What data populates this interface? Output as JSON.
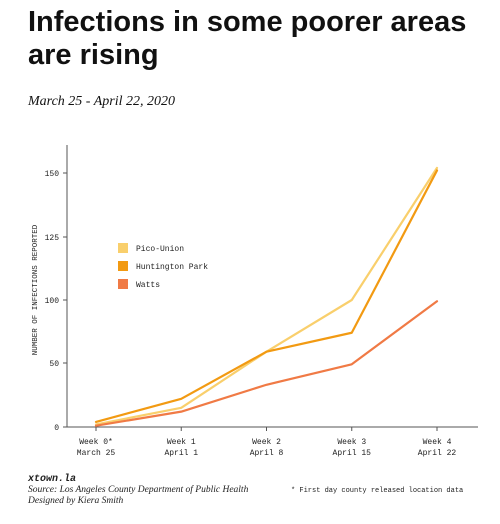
{
  "title": "Infections in some poorer areas are rising",
  "subtitle": "March 25 - April 22, 2020",
  "footer": {
    "brand": "xtown.la",
    "source": "Source: Los Angeles County Department of Public Health",
    "designer": "Designed by Kiera Smith",
    "footnote": "* First day county released location data"
  },
  "chart_data": {
    "type": "line",
    "categories": [
      [
        "Week 0*",
        "March 25"
      ],
      [
        "Week 1",
        "April 1"
      ],
      [
        "Week 2",
        "April 8"
      ],
      [
        "Week 3",
        "April 15"
      ],
      [
        "Week 4",
        "April 22"
      ]
    ],
    "ylabel": "NUMBER OF INFECTIONS REPORTED",
    "xlabel": "",
    "ylim": [
      0,
      135
    ],
    "yticks": [
      0,
      50,
      100,
      125,
      150
    ],
    "ytick_labels": [
      "0",
      "50",
      "100",
      "125",
      "150"
    ],
    "grid": false,
    "legend_position": "left",
    "series": [
      {
        "name": "Pico-Union",
        "color": "#f9cf6c",
        "values": [
          2,
          15,
          59,
          100,
          152
        ]
      },
      {
        "name": "Huntington Park",
        "color": "#f29a12",
        "values": [
          4,
          22,
          59,
          74,
          151
        ]
      },
      {
        "name": "Watts",
        "color": "#f07a45",
        "values": [
          1,
          12,
          33,
          49,
          99
        ]
      }
    ]
  }
}
